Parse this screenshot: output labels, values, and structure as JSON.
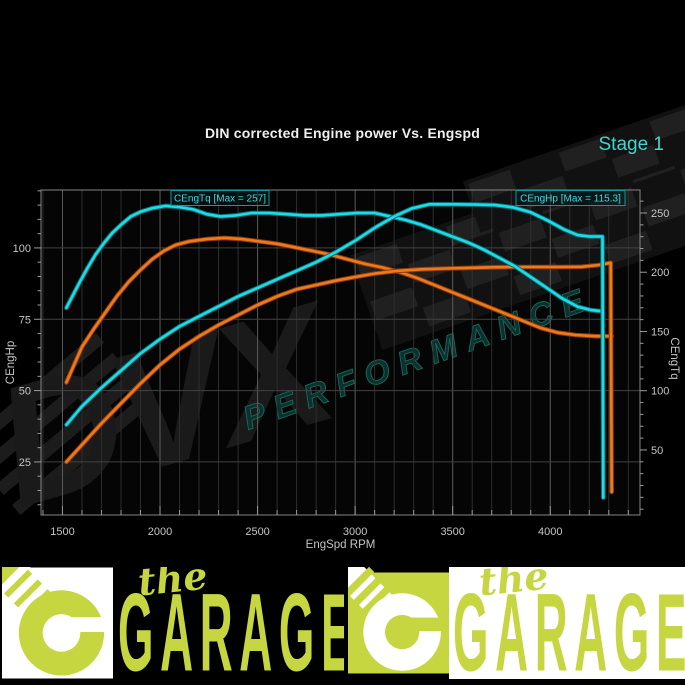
{
  "page": {
    "bg": "#000000"
  },
  "chart": {
    "title": "DIN corrected Engine power Vs. Engspd",
    "stage_label": "Stage 1",
    "stage_color": "#3fd6cb",
    "watermark": {
      "line1": "DVX",
      "line2": "PERFORMANCE"
    },
    "legend": [
      {
        "label": "CEngTq [Max = 257]"
      },
      {
        "label": "CEngHp [Max = 115.3]"
      }
    ]
  },
  "chart_data": {
    "type": "line",
    "title": "DIN corrected Engine power Vs. Engspd",
    "xlabel": "EngSpd RPM",
    "ylabel_left": "CEngHp",
    "ylabel_right": "CEngTq",
    "xlim": [
      1390,
      4460
    ],
    "ylim_left": [
      6.4,
      120.3
    ],
    "ylim_right": [
      -4.9,
      269.4
    ],
    "x_ticks": [
      1500,
      2000,
      2500,
      3000,
      3500,
      4000
    ],
    "x_minor_step": 100,
    "y_ticks_left": [
      25,
      50,
      75,
      100
    ],
    "y_minor_left_step": 5,
    "y_ticks_right": [
      50,
      100,
      150,
      200,
      250
    ],
    "y_minor_right_step": 10,
    "grid": true,
    "series": [
      {
        "name": "CEngTq original",
        "axis": "right",
        "color": "#ee7a1e",
        "edge": "#8f3c0a",
        "points": [
          [
            1520,
            107
          ],
          [
            1560,
            122
          ],
          [
            1600,
            137
          ],
          [
            1660,
            152
          ],
          [
            1720,
            166
          ],
          [
            1780,
            180
          ],
          [
            1840,
            192
          ],
          [
            1900,
            202
          ],
          [
            1960,
            211
          ],
          [
            2020,
            218
          ],
          [
            2080,
            223
          ],
          [
            2150,
            226
          ],
          [
            2240,
            228
          ],
          [
            2330,
            229
          ],
          [
            2420,
            228
          ],
          [
            2510,
            226
          ],
          [
            2600,
            224
          ],
          [
            2690,
            221
          ],
          [
            2780,
            218
          ],
          [
            2870,
            215
          ],
          [
            2960,
            211
          ],
          [
            3050,
            207
          ],
          [
            3140,
            204
          ],
          [
            3230,
            200
          ],
          [
            3320,
            195
          ],
          [
            3410,
            189
          ],
          [
            3500,
            183
          ],
          [
            3590,
            177
          ],
          [
            3680,
            171
          ],
          [
            3770,
            165
          ],
          [
            3860,
            159
          ],
          [
            3950,
            153
          ],
          [
            4040,
            149
          ],
          [
            4130,
            147
          ],
          [
            4230,
            146
          ],
          [
            4315,
            146
          ]
        ]
      },
      {
        "name": "CEngHp original",
        "axis": "left",
        "color": "#ee7a1e",
        "edge": "#8f3c0a",
        "points": [
          [
            1520,
            25
          ],
          [
            1600,
            31
          ],
          [
            1700,
            38.5
          ],
          [
            1800,
            45.5
          ],
          [
            1900,
            52.5
          ],
          [
            2000,
            59
          ],
          [
            2100,
            64.5
          ],
          [
            2200,
            69
          ],
          [
            2300,
            73
          ],
          [
            2400,
            76.5
          ],
          [
            2500,
            80
          ],
          [
            2600,
            83
          ],
          [
            2700,
            85.5
          ],
          [
            2800,
            87
          ],
          [
            2900,
            88.5
          ],
          [
            3000,
            89.8
          ],
          [
            3100,
            91
          ],
          [
            3220,
            92
          ],
          [
            3340,
            92.5
          ],
          [
            3460,
            92.8
          ],
          [
            3580,
            93
          ],
          [
            3700,
            93.2
          ],
          [
            3820,
            93.3
          ],
          [
            3940,
            93.3
          ],
          [
            4060,
            93.3
          ],
          [
            4160,
            93.4
          ],
          [
            4250,
            94
          ],
          [
            4310,
            94.8
          ],
          [
            4315,
            14.5
          ]
        ]
      },
      {
        "name": "CEngTq stage1",
        "axis": "right",
        "color": "#1edde2",
        "edge": "#0b6e7a",
        "points": [
          [
            1520,
            170
          ],
          [
            1555,
            181
          ],
          [
            1590,
            192
          ],
          [
            1630,
            204
          ],
          [
            1670,
            215
          ],
          [
            1710,
            224
          ],
          [
            1755,
            233
          ],
          [
            1800,
            240
          ],
          [
            1850,
            247
          ],
          [
            1900,
            251
          ],
          [
            1960,
            254
          ],
          [
            2030,
            256
          ],
          [
            2100,
            255
          ],
          [
            2170,
            253
          ],
          [
            2240,
            249
          ],
          [
            2310,
            247
          ],
          [
            2390,
            248
          ],
          [
            2470,
            250
          ],
          [
            2560,
            250
          ],
          [
            2650,
            249
          ],
          [
            2740,
            248
          ],
          [
            2830,
            248
          ],
          [
            2920,
            249
          ],
          [
            3010,
            250
          ],
          [
            3100,
            250
          ],
          [
            3180,
            247
          ],
          [
            3260,
            244
          ],
          [
            3340,
            240
          ],
          [
            3420,
            235
          ],
          [
            3500,
            230
          ],
          [
            3580,
            225
          ],
          [
            3660,
            219
          ],
          [
            3740,
            212
          ],
          [
            3820,
            205
          ],
          [
            3900,
            196
          ],
          [
            3980,
            187
          ],
          [
            4060,
            178
          ],
          [
            4140,
            171
          ],
          [
            4210,
            168
          ],
          [
            4268,
            167
          ]
        ]
      },
      {
        "name": "CEngHp stage1",
        "axis": "left",
        "color": "#1edde2",
        "edge": "#0b6e7a",
        "points": [
          [
            1520,
            38
          ],
          [
            1600,
            44.5
          ],
          [
            1700,
            51
          ],
          [
            1800,
            57
          ],
          [
            1900,
            63
          ],
          [
            2000,
            68
          ],
          [
            2100,
            72.5
          ],
          [
            2200,
            76
          ],
          [
            2300,
            79.5
          ],
          [
            2400,
            83
          ],
          [
            2500,
            86
          ],
          [
            2600,
            89
          ],
          [
            2700,
            92
          ],
          [
            2800,
            95
          ],
          [
            2900,
            98.5
          ],
          [
            3000,
            102.5
          ],
          [
            3100,
            107
          ],
          [
            3200,
            111
          ],
          [
            3290,
            113.8
          ],
          [
            3380,
            115.3
          ],
          [
            3500,
            115.3
          ],
          [
            3620,
            115.2
          ],
          [
            3720,
            115
          ],
          [
            3810,
            114.2
          ],
          [
            3900,
            112.5
          ],
          [
            3990,
            109.5
          ],
          [
            4070,
            106.5
          ],
          [
            4140,
            104.5
          ],
          [
            4200,
            104
          ],
          [
            4268,
            104
          ],
          [
            4272,
            12.5
          ]
        ]
      }
    ],
    "annotations": [
      {
        "text": "CEngTq [Max = 257]"
      },
      {
        "text": "CEngHp [Max = 115.3]"
      }
    ],
    "colors": {
      "tuned": "#1edde2",
      "original": "#ee7a1e",
      "legend_text": "#3fd8dc",
      "legend_border": "#0e9aa0",
      "tick_label": "#c4c4c4",
      "spine": "#858585",
      "grid_minor": "#2e2e2e",
      "grid_major": "#5c5c5c",
      "grid_horizontal": "#424242"
    }
  },
  "banner": {
    "lime": "#c5d640",
    "units": [
      {
        "tile_bg": "#ffffff",
        "glyph": "#c5d640",
        "text_bg": "#000000",
        "text_color": "#c5d640",
        "the_label": "the",
        "garage_label": "GARAGE"
      },
      {
        "tile_bg": "#c5d640",
        "glyph": "#ffffff",
        "text_bg": "#ffffff",
        "text_color": "#c5d640",
        "the_label": "the",
        "garage_label": "GARAGE"
      }
    ]
  }
}
